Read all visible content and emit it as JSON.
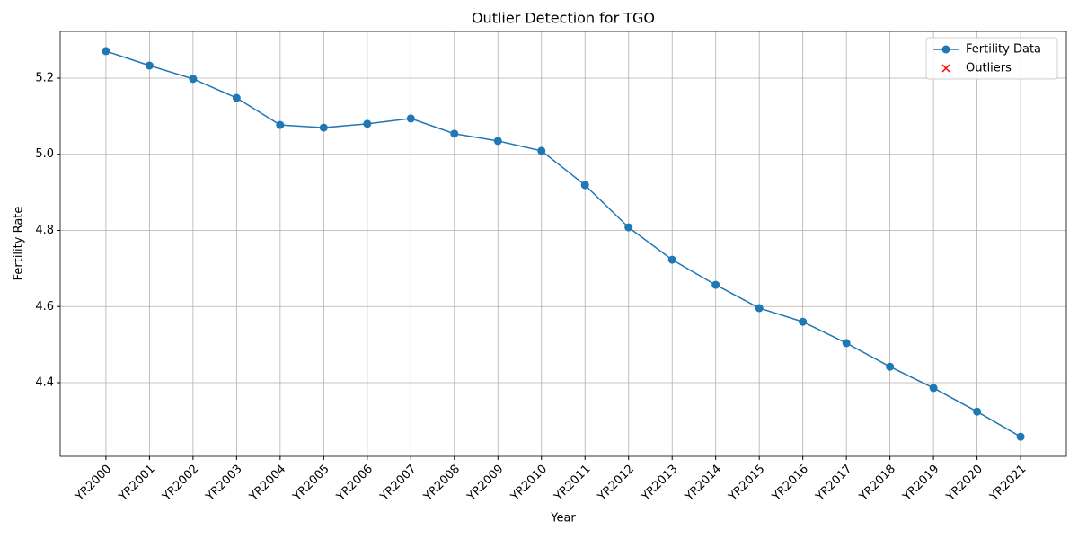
{
  "chart_data": {
    "type": "line",
    "title": "Outlier Detection for TGO",
    "xlabel": "Year",
    "ylabel": "Fertility Rate",
    "categories": [
      "YR2000",
      "YR2001",
      "YR2002",
      "YR2003",
      "YR2004",
      "YR2005",
      "YR2006",
      "YR2007",
      "YR2008",
      "YR2009",
      "YR2010",
      "YR2011",
      "YR2012",
      "YR2013",
      "YR2014",
      "YR2015",
      "YR2016",
      "YR2017",
      "YR2018",
      "YR2019",
      "YR2020",
      "YR2021"
    ],
    "series": [
      {
        "name": "Fertility Data",
        "color": "#1f77b4",
        "marker": "circle",
        "values": [
          5.271,
          5.233,
          5.198,
          5.148,
          5.077,
          5.07,
          5.08,
          5.094,
          5.054,
          5.035,
          5.009,
          4.919,
          4.808,
          4.723,
          4.657,
          4.596,
          4.56,
          4.504,
          4.442,
          4.386,
          4.324,
          4.258
        ]
      },
      {
        "name": "Outliers",
        "color": "#ff0000",
        "marker": "x",
        "values": [
          null,
          null,
          null,
          null,
          null,
          null,
          null,
          null,
          null,
          null,
          null,
          null,
          null,
          null,
          null,
          null,
          null,
          null,
          null,
          null,
          null,
          null
        ]
      }
    ],
    "ylim": [
      4.2065,
      5.3227
    ],
    "yticks": [
      4.4,
      4.6,
      4.8,
      {
        "value": 5.0,
        "label": "5.0"
      },
      5.2
    ],
    "grid": true,
    "legend": "upper right"
  }
}
